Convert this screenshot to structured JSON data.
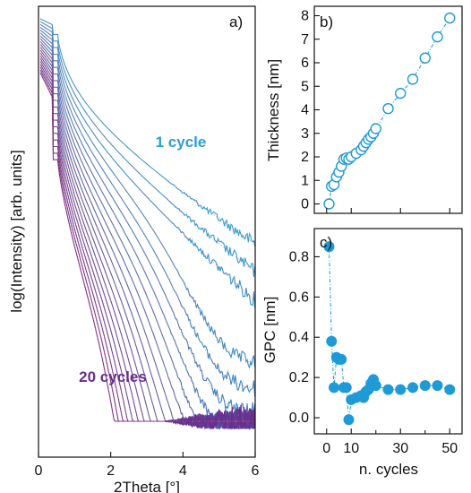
{
  "chart_data": [
    {
      "panel_label": "a)",
      "type": "line",
      "xlabel": "2Theta [°]",
      "ylabel": "log(Intensity) [arb. units]",
      "xlim": [
        0,
        6
      ],
      "x_ticks": [
        "0",
        "2",
        "4",
        "6"
      ],
      "y_ticks": [],
      "annotations": [
        {
          "text": "1 cycle",
          "color": "#2a9fd6"
        },
        {
          "text": "20 cycles",
          "color": "#6a2d8f"
        }
      ],
      "series_count": 20,
      "color_start": "#2ea3d8",
      "color_end": "#6b2c8c",
      "fit_color": "#e05a6a"
    },
    {
      "panel_label": "b)",
      "type": "scatter",
      "xlabel": "",
      "ylabel": "Thickness [nm]",
      "xlim": [
        -5,
        55
      ],
      "ylim": [
        -0.4,
        8.4
      ],
      "y_ticks": [
        "0",
        "1",
        "2",
        "3",
        "4",
        "5",
        "6",
        "7",
        "8"
      ],
      "marker": "open-circle",
      "color": "#1e9ad6",
      "x": [
        1,
        2,
        3,
        4,
        5,
        6,
        7,
        8,
        9,
        10,
        12,
        14,
        15,
        16,
        17,
        18,
        19,
        20,
        25,
        30,
        35,
        40,
        45,
        50
      ],
      "y": [
        0.0,
        0.75,
        0.82,
        1.15,
        1.35,
        1.6,
        1.9,
        1.95,
        1.9,
        2.0,
        2.15,
        2.3,
        2.45,
        2.6,
        2.75,
        2.85,
        3.0,
        3.2,
        4.05,
        4.7,
        5.3,
        6.2,
        7.1,
        7.9
      ]
    },
    {
      "panel_label": "c)",
      "type": "scatter",
      "xlabel": "n. cycles",
      "ylabel": "GPC [nm]",
      "xlim": [
        -5,
        55
      ],
      "ylim": [
        -0.08,
        0.94
      ],
      "x_ticks": [
        "0",
        "10",
        "30",
        "50"
      ],
      "y_ticks": [
        "0.0",
        "0.2",
        "0.4",
        "0.6",
        "0.8"
      ],
      "marker": "filled-circle",
      "color": "#1e9ad6",
      "x": [
        1,
        2,
        3,
        4,
        5,
        6,
        7,
        8,
        9,
        10,
        12,
        14,
        15,
        16,
        17,
        18,
        19,
        20,
        25,
        30,
        35,
        40,
        45,
        50
      ],
      "y": [
        0.85,
        0.38,
        0.15,
        0.3,
        0.29,
        0.29,
        0.15,
        0.15,
        -0.01,
        0.09,
        0.1,
        0.11,
        0.1,
        0.13,
        0.14,
        0.17,
        0.19,
        0.16,
        0.14,
        0.14,
        0.15,
        0.16,
        0.16,
        0.14
      ]
    }
  ]
}
